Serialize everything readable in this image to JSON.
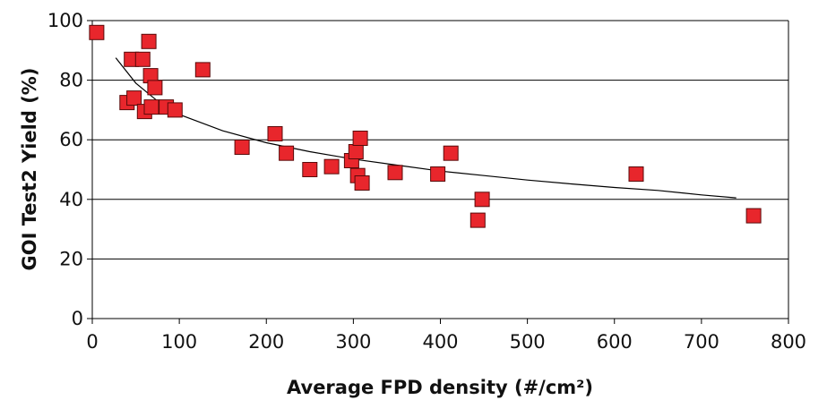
{
  "chart_data": {
    "type": "scatter",
    "title": "",
    "xlabel": "Average FPD density (#/cm²)",
    "ylabel": "GOI Test2 Yield (%)",
    "xlim": [
      0,
      800
    ],
    "ylim": [
      0,
      100
    ],
    "x_ticks": [
      "0",
      "100",
      "200",
      "300",
      "400",
      "500",
      "600",
      "700",
      "800"
    ],
    "y_ticks": [
      "0",
      "20",
      "40",
      "60",
      "80",
      "100"
    ],
    "grid": "horizontal",
    "legend": "none",
    "marker_color": "#e8262c",
    "marker_edge": "#5a0a0a",
    "series": [
      {
        "points": [
          [
            5,
            96
          ],
          [
            40,
            72.5
          ],
          [
            45,
            87
          ],
          [
            48,
            74
          ],
          [
            58,
            87
          ],
          [
            60,
            69.5
          ],
          [
            65,
            93
          ],
          [
            67,
            81.5
          ],
          [
            68,
            71
          ],
          [
            72,
            77.5
          ],
          [
            85,
            71
          ],
          [
            95,
            70
          ],
          [
            127,
            83.5
          ],
          [
            172,
            57.5
          ],
          [
            210,
            62
          ],
          [
            223,
            55.5
          ],
          [
            250,
            50
          ],
          [
            275,
            51
          ],
          [
            298,
            53
          ],
          [
            303,
            56
          ],
          [
            305,
            48
          ],
          [
            308,
            60.5
          ],
          [
            310,
            45.5
          ],
          [
            348,
            49
          ],
          [
            397,
            48.5
          ],
          [
            412,
            55.5
          ],
          [
            443,
            33
          ],
          [
            448,
            40
          ],
          [
            625,
            48.5
          ],
          [
            760,
            34.5
          ]
        ]
      }
    ],
    "trendline": {
      "x": [
        27,
        50,
        75,
        100,
        150,
        200,
        250,
        300,
        350,
        400,
        450,
        500,
        550,
        600,
        650,
        700,
        740
      ],
      "y": [
        87.5,
        79,
        73,
        68.5,
        63,
        59,
        56,
        53.5,
        51.5,
        49.5,
        48,
        46.5,
        45.2,
        44,
        43,
        41.5,
        40.5
      ]
    }
  }
}
